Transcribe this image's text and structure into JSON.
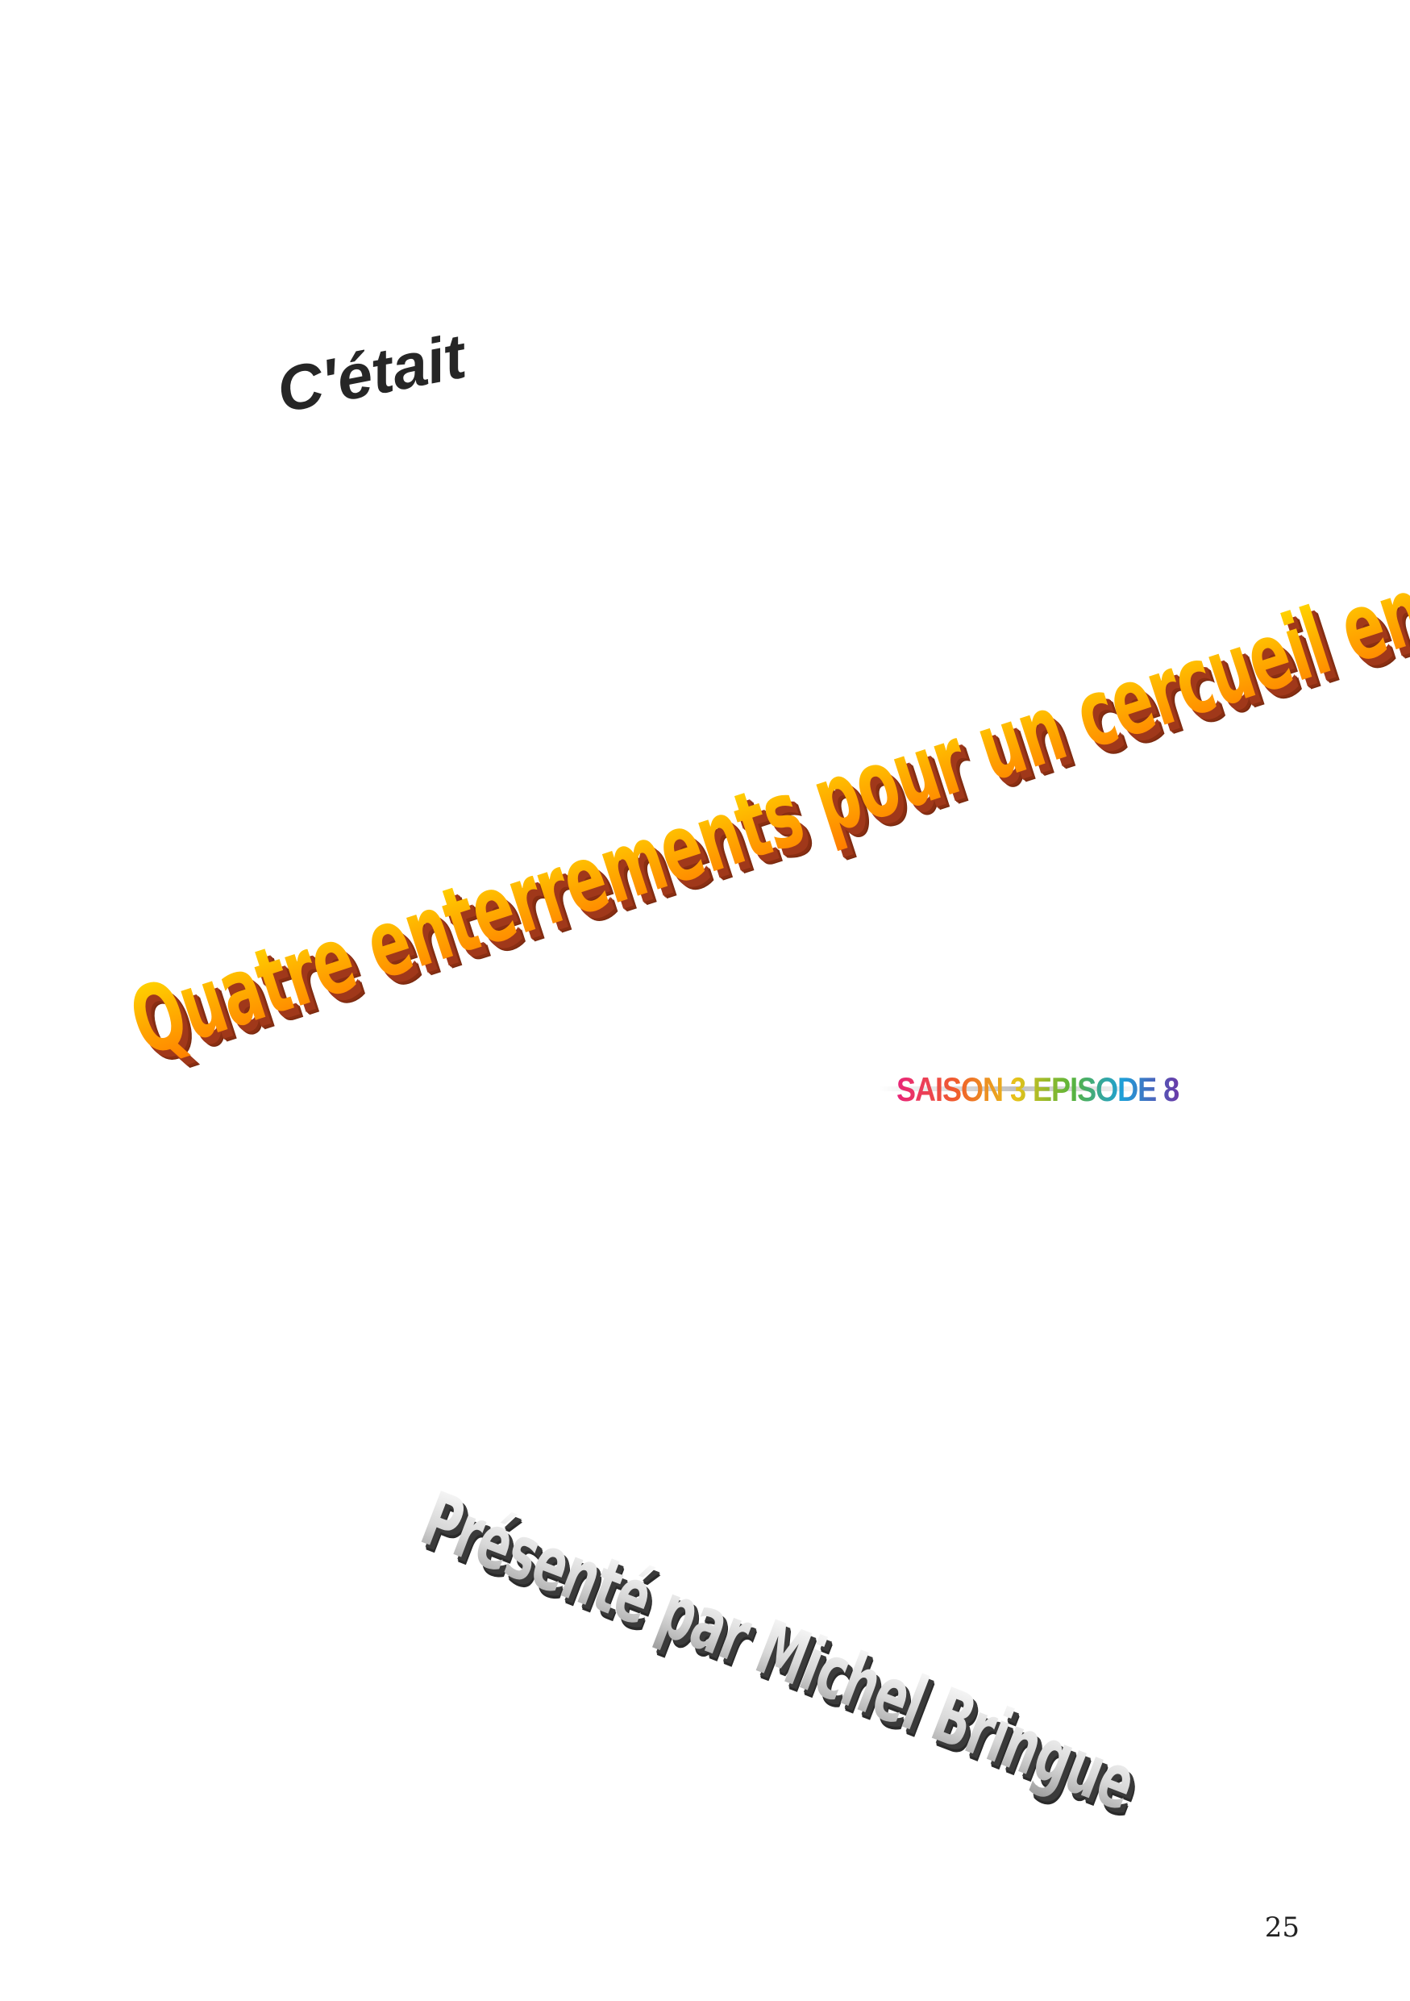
{
  "intro_text": "C'était",
  "title": "Quatre enterrements pour un cercueil en diamant",
  "season_episode": "SAISON 3 EPISODE 8",
  "presenter": "Présenté par Michel Bringue",
  "page_number": "25",
  "colors": {
    "intro": "#262626",
    "title_top": "#ffe000",
    "title_bottom": "#ff7a00",
    "title_shadow": "#a0381a",
    "presenter_fill": "#d8d8d8",
    "presenter_shadow": "#3a3a3a"
  }
}
